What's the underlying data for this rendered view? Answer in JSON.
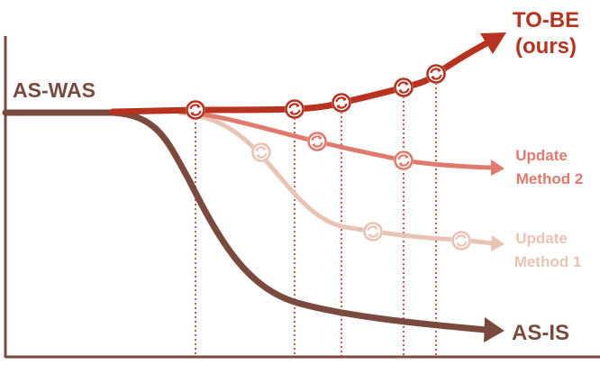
{
  "labels": {
    "as_was": "AS-WAS",
    "to_be_line1": "TO-BE",
    "to_be_line2": "(ours)",
    "update2_line1": "Update",
    "update2_line2": "Method 2",
    "update1_line1": "Update",
    "update1_line2": "Method 1",
    "as_is": "AS-IS"
  },
  "colors": {
    "as_is": "#7a4a3e",
    "to_be": "#b8331f",
    "update2": "#e07a6d",
    "update1": "#e9c3b4",
    "axis": "#7a4a3e",
    "guide": "#b8331f"
  },
  "icons": {
    "update_marker": "refresh-cycle-icon",
    "arrowhead": "arrowhead-icon"
  }
}
